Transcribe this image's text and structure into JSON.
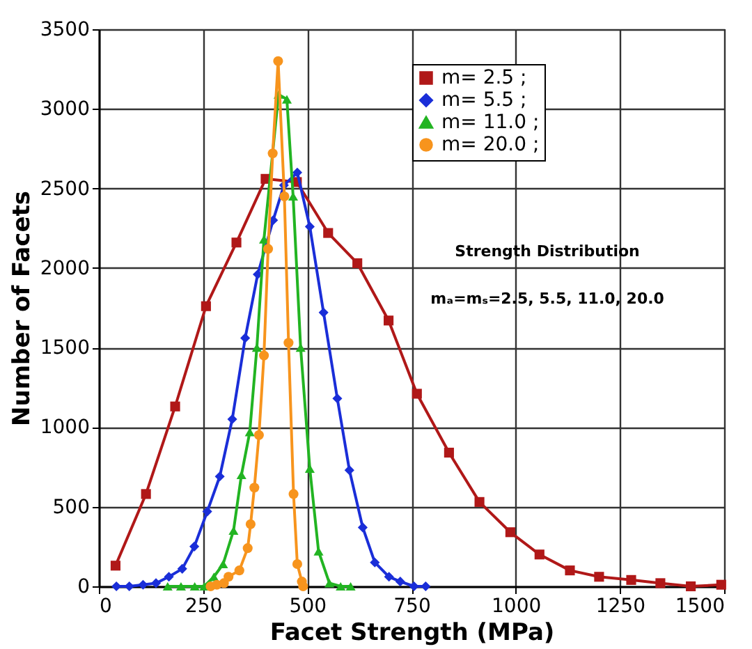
{
  "chart_data": {
    "type": "line",
    "xlabel": "Facet Strength (MPa)",
    "ylabel": "Number of Facets",
    "xlim": [
      0,
      1500
    ],
    "xticks": [
      0,
      250,
      500,
      750,
      1000,
      1250,
      1500
    ],
    "ylim": [
      0,
      3500
    ],
    "yticks": [
      0,
      500,
      1000,
      1500,
      2000,
      2500,
      3000,
      3500
    ],
    "grid": true,
    "legend": "top right",
    "annotations": [
      "Strength Distribution",
      "mₐ=mₛ=2.5, 5.5, 11.0, 20.0"
    ],
    "series": [
      {
        "name": "m= 2.5 ;",
        "color": "#b01818",
        "marker": "square",
        "x": [
          40,
          113,
          183,
          257,
          330,
          400,
          475,
          550,
          620,
          695,
          763,
          840,
          913,
          987,
          1057,
          1130,
          1200,
          1277,
          1347,
          1420,
          1493
        ],
        "values": [
          130,
          580,
          1130,
          1760,
          2160,
          2560,
          2540,
          2220,
          2030,
          1670,
          1210,
          840,
          530,
          340,
          200,
          100,
          60,
          40,
          20,
          0,
          10
        ]
      },
      {
        "name": "m= 5.5 ;",
        "color": "#1a2ed8",
        "marker": "diamond",
        "x": [
          42,
          73,
          106,
          137,
          168,
          200,
          229,
          260,
          290,
          320,
          351,
          381,
          418,
          444,
          476,
          506,
          539,
          572,
          601,
          633,
          662,
          696,
          723,
          756,
          784
        ],
        "values": [
          0,
          0,
          10,
          20,
          60,
          110,
          250,
          470,
          690,
          1050,
          1560,
          1960,
          2300,
          2520,
          2600,
          2260,
          1720,
          1180,
          730,
          370,
          150,
          60,
          30,
          0,
          0
        ]
      },
      {
        "name": "m= 11.0 ;",
        "color": "#22b422",
        "marker": "triangle",
        "x": [
          165,
          197,
          230,
          253,
          276,
          298,
          323,
          342,
          362,
          379,
          396,
          431,
          451,
          466,
          484,
          506,
          527,
          553,
          580,
          604
        ],
        "values": [
          0,
          0,
          0,
          0,
          60,
          140,
          350,
          700,
          970,
          1500,
          2180,
          3090,
          3060,
          2450,
          1500,
          740,
          220,
          20,
          0,
          0
        ]
      },
      {
        "name": "m= 20.0 ;",
        "color": "#f7941d",
        "marker": "circle",
        "x": [
          268,
          283,
          300,
          311,
          337,
          357,
          364,
          373,
          384,
          396,
          406,
          417,
          430,
          445,
          455,
          467,
          476,
          487,
          490
        ],
        "values": [
          0,
          10,
          20,
          60,
          100,
          240,
          390,
          620,
          950,
          1450,
          2120,
          2720,
          3300,
          2450,
          1530,
          580,
          140,
          30,
          0
        ]
      }
    ]
  }
}
